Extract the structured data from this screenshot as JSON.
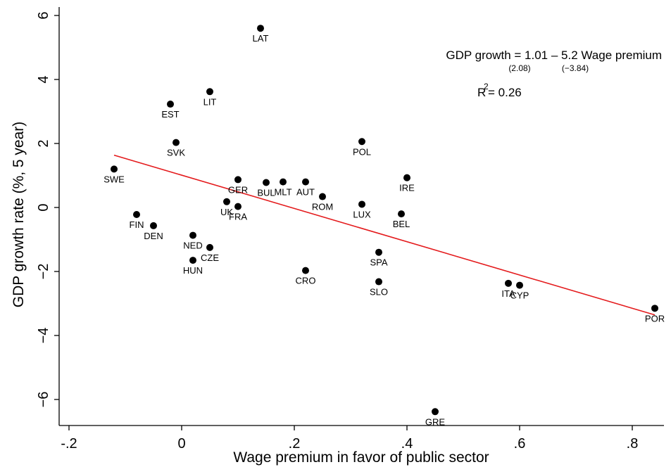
{
  "chart_data": {
    "type": "scatter",
    "xlabel": "Wage premium in favor of public sector",
    "ylabel": "GDP growth rate (%, 5 year)",
    "xlim": [
      -0.2,
      0.85
    ],
    "ylim": [
      -7,
      6.4
    ],
    "x_ticks": [
      -0.2,
      0,
      0.2,
      0.4,
      0.6,
      0.8
    ],
    "x_tick_labels": [
      "-.2",
      "0",
      ".2",
      ".4",
      ".6",
      ".8"
    ],
    "y_ticks": [
      -6,
      -4,
      -2,
      0,
      2,
      4,
      6
    ],
    "y_tick_labels": [
      "−6",
      "−4",
      "−2",
      "0",
      "2",
      "4",
      "6"
    ],
    "grid": false,
    "points": [
      {
        "label": "LAT",
        "x": 0.14,
        "y": 5.6
      },
      {
        "label": "LIT",
        "x": 0.05,
        "y": 3.62
      },
      {
        "label": "EST",
        "x": -0.02,
        "y": 3.23
      },
      {
        "label": "SVK",
        "x": -0.01,
        "y": 2.03
      },
      {
        "label": "POL",
        "x": 0.32,
        "y": 2.06
      },
      {
        "label": "SWE",
        "x": -0.12,
        "y": 1.2
      },
      {
        "label": "GER",
        "x": 0.1,
        "y": 0.87
      },
      {
        "label": "BUL",
        "x": 0.15,
        "y": 0.78
      },
      {
        "label": "MLT",
        "x": 0.18,
        "y": 0.8
      },
      {
        "label": "AUT",
        "x": 0.22,
        "y": 0.8
      },
      {
        "label": "IRE",
        "x": 0.4,
        "y": 0.93
      },
      {
        "label": "ROM",
        "x": 0.25,
        "y": 0.34
      },
      {
        "label": "UK",
        "x": 0.08,
        "y": 0.18
      },
      {
        "label": "FRA",
        "x": 0.1,
        "y": 0.03
      },
      {
        "label": "LUX",
        "x": 0.32,
        "y": 0.1
      },
      {
        "label": "FIN",
        "x": -0.08,
        "y": -0.22
      },
      {
        "label": "BEL",
        "x": 0.39,
        "y": -0.2
      },
      {
        "label": "DEN",
        "x": -0.05,
        "y": -0.57
      },
      {
        "label": "NED",
        "x": 0.02,
        "y": -0.87
      },
      {
        "label": "CZE",
        "x": 0.05,
        "y": -1.25
      },
      {
        "label": "SPA",
        "x": 0.35,
        "y": -1.4
      },
      {
        "label": "HUN",
        "x": 0.02,
        "y": -1.65
      },
      {
        "label": "CRO",
        "x": 0.22,
        "y": -1.97
      },
      {
        "label": "SLO",
        "x": 0.35,
        "y": -2.32
      },
      {
        "label": "ITA",
        "x": 0.58,
        "y": -2.37
      },
      {
        "label": "CYP",
        "x": 0.6,
        "y": -2.43
      },
      {
        "label": "POR",
        "x": 0.84,
        "y": -3.15
      },
      {
        "label": "GRE",
        "x": 0.45,
        "y": -6.38
      }
    ],
    "fit_line": {
      "intercept": 1.01,
      "slope": -5.2,
      "x_range": [
        -0.12,
        0.84
      ],
      "color": "#e41a1c"
    },
    "annotation": {
      "equation": "GDP growth = 1.01 – 5.2 Wage premium",
      "se_intercept": "(2.08)",
      "se_slope": "(−3.84)",
      "r2_prefix": "R",
      "r2_superscript": "2",
      "r2_value": "= 0.26"
    },
    "colors": {
      "points": "#000000",
      "fit": "#e41a1c"
    }
  }
}
